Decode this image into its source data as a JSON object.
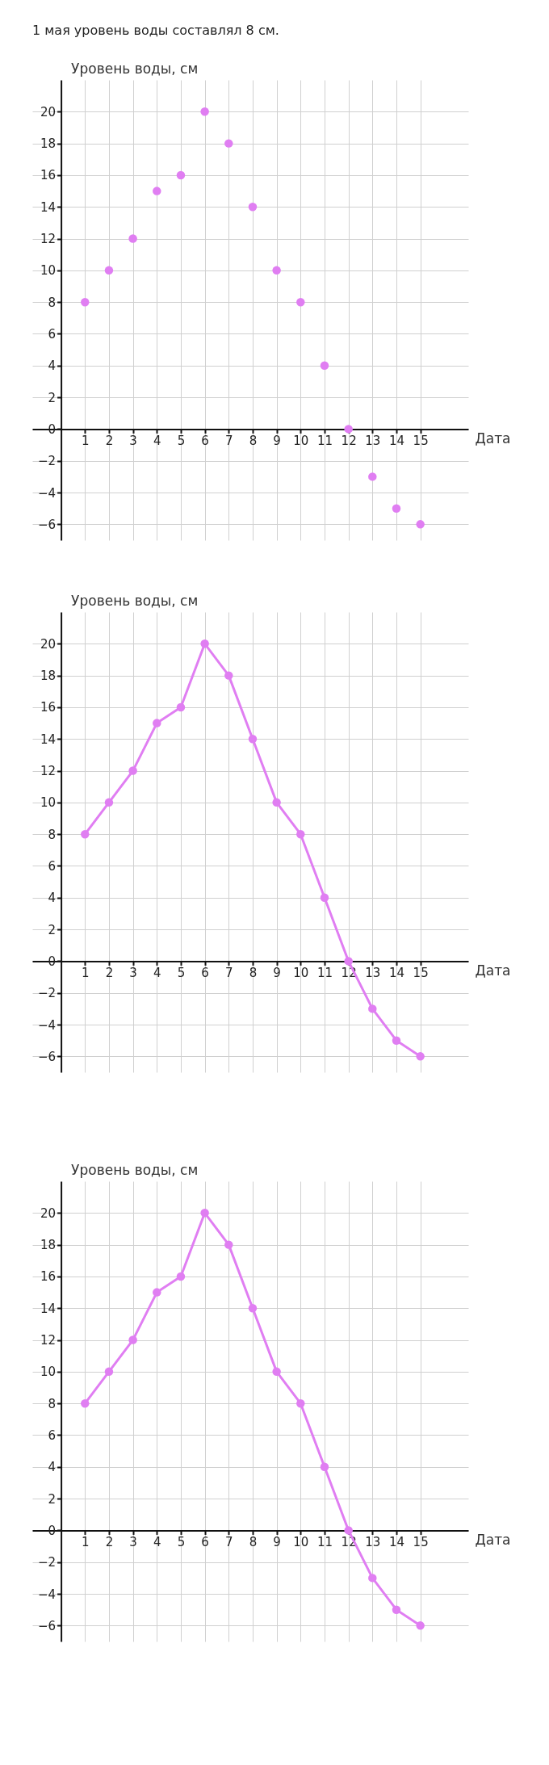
{
  "chart_data": [
    {
      "type": "scatter",
      "title": "1 мая уровень воды составлял 8 см.",
      "xlabel": "Дата",
      "ylabel": "Уровень воды, см",
      "x": [
        1,
        2,
        3,
        4,
        5,
        6,
        7,
        8,
        9,
        10,
        11,
        12,
        13,
        14,
        15
      ],
      "series": [
        {
          "color": "#e07ef2",
          "values": [
            8,
            10,
            12,
            15,
            16,
            20,
            18,
            14,
            10,
            8,
            4,
            0,
            -3,
            -5,
            -6
          ]
        }
      ],
      "xlim": [
        -1.2,
        17
      ],
      "xticks": [
        1,
        2,
        3,
        4,
        5,
        6,
        7,
        8,
        9,
        10,
        11,
        12,
        13,
        14,
        15
      ],
      "ylim": [
        -7,
        22
      ],
      "yticks": [
        -6,
        -4,
        -2,
        0,
        2,
        4,
        6,
        8,
        10,
        12,
        14,
        16,
        18,
        20
      ],
      "grid": true,
      "marker": "circle"
    },
    {
      "type": "line",
      "xlabel": "Дата",
      "ylabel": "Уровень воды, см",
      "x": [
        1,
        2,
        3,
        4,
        5,
        6,
        7,
        8,
        9,
        10,
        11,
        12,
        13,
        14,
        15
      ],
      "series": [
        {
          "color": "#e07ef2",
          "values": [
            8,
            10,
            12,
            15,
            16,
            20,
            18,
            14,
            10,
            8,
            4,
            0,
            -3,
            -5,
            -6
          ]
        }
      ],
      "xlim": [
        -1.2,
        17
      ],
      "xticks": [
        1,
        2,
        3,
        4,
        5,
        6,
        7,
        8,
        9,
        10,
        11,
        12,
        13,
        14,
        15
      ],
      "ylim": [
        -7,
        22
      ],
      "yticks": [
        -6,
        -4,
        -2,
        0,
        2,
        4,
        6,
        8,
        10,
        12,
        14,
        16,
        18,
        20
      ],
      "grid": true,
      "marker": "circle",
      "line_style": "solid"
    },
    {
      "type": "line",
      "xlabel": "Дата",
      "ylabel": "Уровень воды, см",
      "x": [
        1,
        2,
        3,
        4,
        5,
        6,
        7,
        8,
        9,
        10,
        11,
        12,
        13,
        14,
        15
      ],
      "series": [
        {
          "color": "#e07ef2",
          "values": [
            8,
            10,
            12,
            15,
            16,
            20,
            18,
            14,
            10,
            8,
            4,
            0,
            -3,
            -5,
            -6
          ]
        }
      ],
      "xlim": [
        -1.2,
        17
      ],
      "xticks": [
        1,
        2,
        3,
        4,
        5,
        6,
        7,
        8,
        9,
        10,
        11,
        12,
        13,
        14,
        15
      ],
      "ylim": [
        -7,
        22
      ],
      "yticks": [
        -6,
        -4,
        -2,
        0,
        2,
        4,
        6,
        8,
        10,
        12,
        14,
        16,
        18,
        20
      ],
      "grid": true,
      "marker": "circle",
      "line_style": "solid"
    }
  ]
}
